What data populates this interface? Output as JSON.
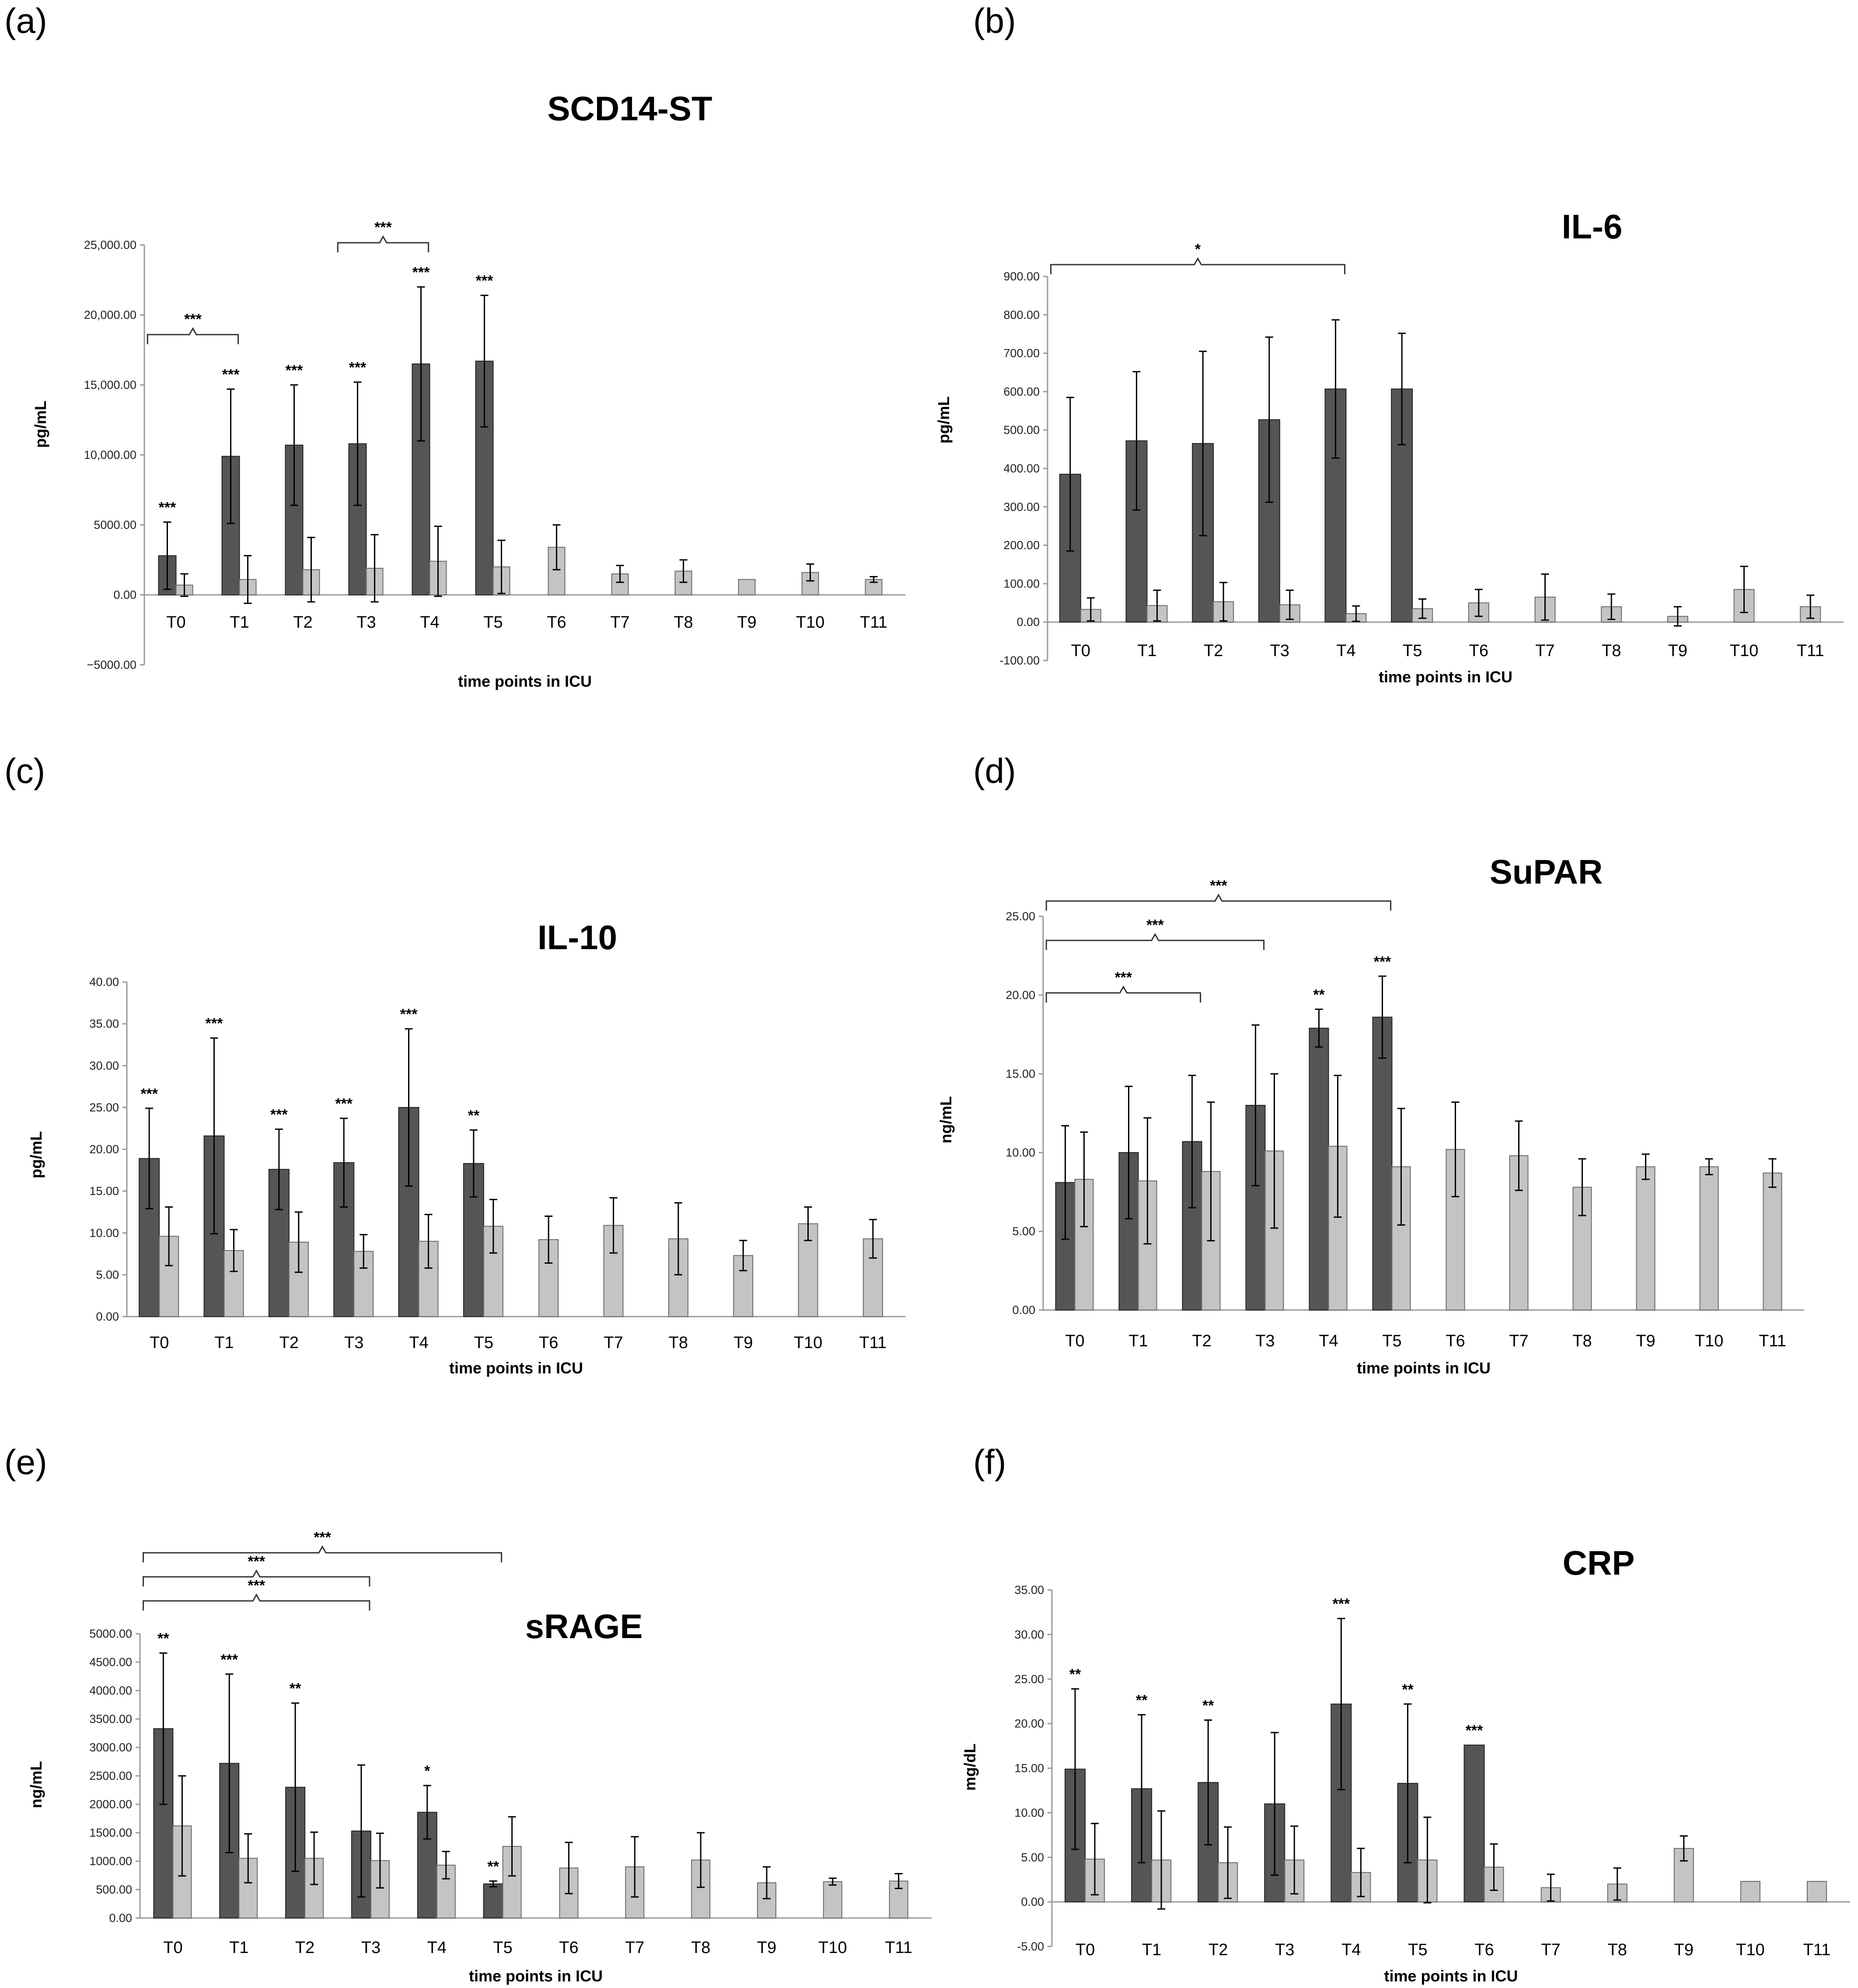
{
  "chart_data": [
    {
      "panel": "(a)",
      "type": "bar",
      "title": "SCD14-ST",
      "xlabel": "time points in ICU",
      "ylabel": "pg/mL",
      "ylim": [
        -5000,
        25000
      ],
      "yticks": [
        "−5000.00",
        "0.00",
        "5000.00",
        "10,000.00",
        "15,000.00",
        "20,000.00",
        "25,000.00"
      ],
      "ytick_values": [
        -5000,
        0,
        5000,
        10000,
        15000,
        20000,
        25000
      ],
      "categories": [
        "T0",
        "T1",
        "T2",
        "T3",
        "T4",
        "T5",
        "T6",
        "T7",
        "T8",
        "T9",
        "T10",
        "T11"
      ],
      "series": [
        {
          "name": "dark",
          "values": [
            2800,
            9900,
            10700,
            10800,
            16500,
            16700,
            null,
            null,
            null,
            null,
            null,
            null
          ],
          "errors": [
            2400,
            4800,
            4300,
            4400,
            5500,
            4700,
            null,
            null,
            null,
            null,
            null,
            null
          ]
        },
        {
          "name": "light",
          "values": [
            700,
            1100,
            1800,
            1900,
            2400,
            2000,
            3400,
            1500,
            1700,
            1100,
            1600,
            1100
          ],
          "errors": [
            800,
            1700,
            2300,
            2400,
            2500,
            1900,
            1600,
            600,
            800,
            0,
            600,
            200
          ]
        }
      ],
      "significance": [
        "***",
        "***",
        "***",
        "***",
        "***",
        "***",
        "",
        "",
        "",
        "",
        "",
        ""
      ],
      "brackets": [
        {
          "from": "T0",
          "to": "T1",
          "label": "***"
        },
        {
          "from": "T3",
          "to": "T4",
          "label": "***"
        }
      ]
    },
    {
      "panel": "(b)",
      "type": "bar",
      "title": "IL-6",
      "xlabel": "time points in ICU",
      "ylabel": "pg/mL",
      "ylim": [
        -100,
        900
      ],
      "yticks": [
        "-100.00",
        "0.00",
        "100.00",
        "200.00",
        "300.00",
        "400.00",
        "500.00",
        "600.00",
        "700.00",
        "800.00",
        "900.00"
      ],
      "ytick_values": [
        -100,
        0,
        100,
        200,
        300,
        400,
        500,
        600,
        700,
        800,
        900
      ],
      "categories": [
        "T0",
        "T1",
        "T2",
        "T3",
        "T4",
        "T5",
        "T6",
        "T7",
        "T8",
        "T9",
        "T10",
        "T11"
      ],
      "series": [
        {
          "name": "dark",
          "values": [
            385,
            472,
            465,
            527,
            607,
            607,
            null,
            null,
            null,
            null,
            null,
            null
          ],
          "errors": [
            200,
            180,
            240,
            215,
            180,
            145,
            null,
            null,
            null,
            null,
            null,
            null
          ]
        },
        {
          "name": "light",
          "values": [
            33,
            43,
            53,
            45,
            22,
            35,
            50,
            65,
            40,
            15,
            85,
            40
          ],
          "errors": [
            30,
            40,
            50,
            38,
            20,
            25,
            35,
            60,
            33,
            25,
            60,
            30
          ]
        }
      ],
      "significance": [
        "",
        "",
        "",
        "",
        "",
        "",
        "",
        "",
        "",
        "",
        "",
        ""
      ],
      "brackets": [
        {
          "from": "T0",
          "to": "T4",
          "label": "*"
        }
      ]
    },
    {
      "panel": "(c)",
      "type": "bar",
      "title": "IL-10",
      "xlabel": "time points in ICU",
      "ylabel": "pg/mL",
      "ylim": [
        0,
        40
      ],
      "yticks": [
        "0.00",
        "5.00",
        "10.00",
        "15.00",
        "20.00",
        "25.00",
        "30.00",
        "35.00",
        "40.00"
      ],
      "ytick_values": [
        0,
        5,
        10,
        15,
        20,
        25,
        30,
        35,
        40
      ],
      "categories": [
        "T0",
        "T1",
        "T2",
        "T3",
        "T4",
        "T5",
        "T6",
        "T7",
        "T8",
        "T9",
        "T10",
        "T11"
      ],
      "series": [
        {
          "name": "dark",
          "values": [
            18.9,
            21.6,
            17.6,
            18.4,
            25.0,
            18.3,
            null,
            null,
            null,
            null,
            null,
            null
          ],
          "errors": [
            6.0,
            11.7,
            4.8,
            5.3,
            9.4,
            4.0,
            null,
            null,
            null,
            null,
            null,
            null
          ]
        },
        {
          "name": "light",
          "values": [
            9.6,
            7.9,
            8.9,
            7.8,
            9.0,
            10.8,
            9.2,
            10.9,
            9.3,
            7.3,
            11.1,
            9.3
          ],
          "errors": [
            3.5,
            2.5,
            3.6,
            2.0,
            3.2,
            3.2,
            2.8,
            3.3,
            4.3,
            1.8,
            2.0,
            2.3
          ]
        }
      ],
      "significance": [
        "***",
        "***",
        "***",
        "***",
        "***",
        "**",
        "",
        "",
        "",
        "",
        "",
        ""
      ],
      "brackets": []
    },
    {
      "panel": "(d)",
      "type": "bar",
      "title": "SuPAR",
      "xlabel": "time points in ICU",
      "ylabel": "ng/mL",
      "ylim": [
        0,
        25
      ],
      "yticks": [
        "0.00",
        "5.00",
        "10.00",
        "15.00",
        "20.00",
        "25.00"
      ],
      "ytick_values": [
        0,
        5,
        10,
        15,
        20,
        25
      ],
      "categories": [
        "T0",
        "T1",
        "T2",
        "T3",
        "T4",
        "T5",
        "T6",
        "T7",
        "T8",
        "T9",
        "T10",
        "T11"
      ],
      "series": [
        {
          "name": "dark",
          "values": [
            8.1,
            10.0,
            10.7,
            13.0,
            17.9,
            18.6,
            null,
            null,
            null,
            null,
            null,
            null
          ],
          "errors": [
            3.6,
            4.2,
            4.2,
            5.1,
            1.2,
            2.6,
            null,
            null,
            null,
            null,
            null,
            null
          ]
        },
        {
          "name": "light",
          "values": [
            8.3,
            8.2,
            8.8,
            10.1,
            10.4,
            9.1,
            10.2,
            9.8,
            7.8,
            9.1,
            9.1,
            8.7
          ],
          "errors": [
            3.0,
            4.0,
            4.4,
            4.9,
            4.5,
            3.7,
            3.0,
            2.2,
            1.8,
            0.8,
            0.5,
            0.9
          ]
        }
      ],
      "significance": [
        "",
        "",
        "",
        "",
        "**",
        "***",
        "",
        "",
        "",
        "",
        "",
        ""
      ],
      "brackets": [
        {
          "from": "T0",
          "to": "T2",
          "label": "***"
        },
        {
          "from": "T0",
          "to": "T3",
          "label": "***"
        },
        {
          "from": "T0",
          "to": "T5",
          "label": "***"
        }
      ]
    },
    {
      "panel": "(e)",
      "type": "bar",
      "title": "sRAGE",
      "xlabel": "time points in ICU",
      "ylabel": "ng/mL",
      "ylim": [
        0,
        5000
      ],
      "yticks": [
        "0.00",
        "500.00",
        "1000.00",
        "1500.00",
        "2000.00",
        "2500.00",
        "3000.00",
        "3500.00",
        "4000.00",
        "4500.00",
        "5000.00"
      ],
      "ytick_values": [
        0,
        500,
        1000,
        1500,
        2000,
        2500,
        3000,
        3500,
        4000,
        4500,
        5000
      ],
      "categories": [
        "T0",
        "T1",
        "T2",
        "T3",
        "T4",
        "T5",
        "T6",
        "T7",
        "T8",
        "T9",
        "T10",
        "T11"
      ],
      "series": [
        {
          "name": "dark",
          "values": [
            3330,
            2720,
            2300,
            1530,
            1860,
            600,
            null,
            null,
            null,
            null,
            null,
            null
          ],
          "errors": [
            1330,
            1570,
            1480,
            1160,
            470,
            50,
            null,
            null,
            null,
            null,
            null,
            null
          ]
        },
        {
          "name": "light",
          "values": [
            1620,
            1050,
            1050,
            1010,
            930,
            1260,
            880,
            900,
            1020,
            620,
            640,
            650
          ],
          "errors": [
            880,
            430,
            460,
            480,
            240,
            520,
            450,
            530,
            480,
            280,
            60,
            130
          ]
        }
      ],
      "significance": [
        "**",
        "***",
        "**",
        "",
        "*",
        "**",
        "",
        "",
        "",
        "",
        "",
        ""
      ],
      "brackets": [
        {
          "from": "T0",
          "to": "T3",
          "label": "***"
        },
        {
          "from": "T0",
          "to": "T3",
          "label": "***"
        },
        {
          "from": "T0",
          "to": "T5",
          "label": "***"
        }
      ]
    },
    {
      "panel": "(f)",
      "type": "bar",
      "title": "CRP",
      "xlabel": "time points in ICU",
      "ylabel": "mg/dL",
      "ylim": [
        -5,
        35
      ],
      "yticks": [
        "-5.00",
        "0.00",
        "5.00",
        "10.00",
        "15.00",
        "20.00",
        "25.00",
        "30.00",
        "35.00"
      ],
      "ytick_values": [
        -5,
        0,
        5,
        10,
        15,
        20,
        25,
        30,
        35
      ],
      "categories": [
        "T0",
        "T1",
        "T2",
        "T3",
        "T4",
        "T5",
        "T6",
        "T7",
        "T8",
        "T9",
        "T10",
        "T11"
      ],
      "series": [
        {
          "name": "dark",
          "values": [
            14.9,
            12.7,
            13.4,
            11.0,
            22.2,
            13.3,
            17.6,
            null,
            null,
            null,
            null,
            null
          ],
          "errors": [
            9.0,
            8.3,
            7.0,
            8.0,
            9.6,
            8.9,
            0,
            null,
            null,
            null,
            null,
            null
          ]
        },
        {
          "name": "light",
          "values": [
            4.8,
            4.7,
            4.4,
            4.7,
            3.3,
            4.7,
            3.9,
            1.6,
            2.0,
            6.0,
            2.3,
            2.3
          ],
          "errors": [
            4.0,
            5.5,
            4.0,
            3.8,
            2.7,
            4.8,
            2.6,
            1.5,
            1.8,
            1.4,
            0,
            0
          ]
        }
      ],
      "significance": [
        "**",
        "**",
        "**",
        "",
        "***",
        "**",
        "***",
        "",
        "",
        "",
        "",
        ""
      ],
      "brackets": []
    }
  ]
}
